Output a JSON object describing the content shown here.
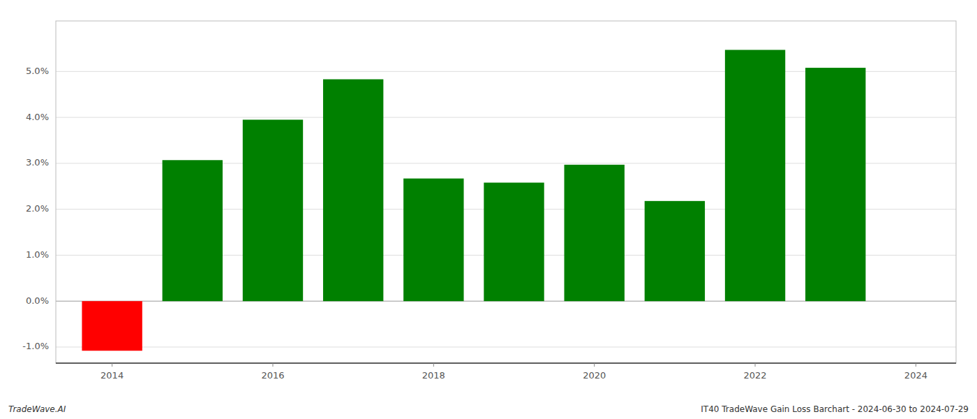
{
  "chart_data": {
    "type": "bar",
    "x": [
      2014,
      2015,
      2016,
      2017,
      2018,
      2019,
      2020,
      2021,
      2022,
      2023
    ],
    "values": [
      -1.08,
      3.07,
      3.95,
      4.83,
      2.67,
      2.58,
      2.97,
      2.18,
      5.47,
      5.08
    ],
    "colors": [
      "#ff0000",
      "#008000",
      "#008000",
      "#008000",
      "#008000",
      "#008000",
      "#008000",
      "#008000",
      "#008000",
      "#008000"
    ],
    "xlim": [
      2013.3,
      2024.5
    ],
    "xticks": [
      2014,
      2016,
      2018,
      2020,
      2022,
      2024
    ],
    "ylim": [
      -1.35,
      6.1
    ],
    "yticks": [
      {
        "value": -1.0,
        "label": "-1.0%"
      },
      {
        "value": 0.0,
        "label": "0.0%"
      },
      {
        "value": 1.0,
        "label": "1.0%"
      },
      {
        "value": 2.0,
        "label": "2.0%"
      },
      {
        "value": 3.0,
        "label": "3.0%"
      },
      {
        "value": 4.0,
        "label": "4.0%"
      },
      {
        "value": 5.0,
        "label": "5.0%"
      }
    ],
    "grid": true,
    "annotations": [
      "TradeWave.AI",
      "IT40 TradeWave Gain Loss Barchart - 2024-06-30 to 2024-07-29"
    ]
  }
}
